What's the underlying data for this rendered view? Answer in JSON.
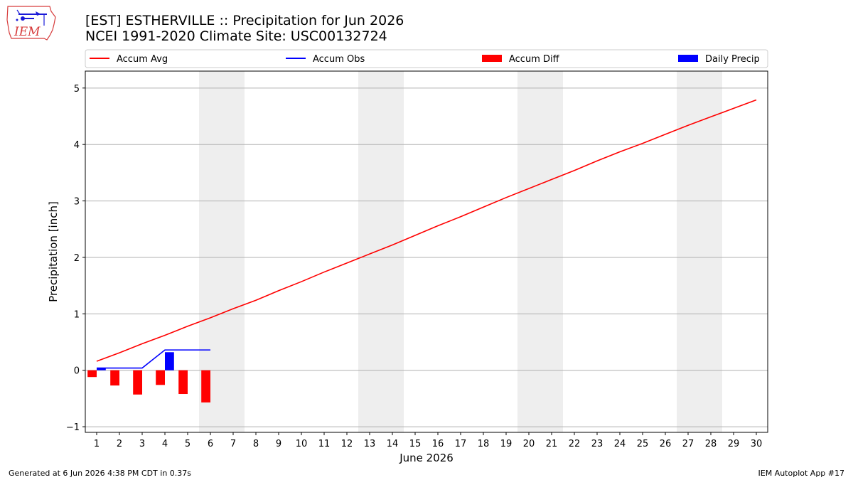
{
  "header": {
    "title_line1": "[EST] ESTHERVILLE :: Precipitation for Jun 2026",
    "title_line2": "NCEI 1991-2020 Climate Site: USC00132724",
    "logo_text": "IEM"
  },
  "footer": {
    "generated": "Generated at 6 Jun 2026 4:38 PM CDT in 0.37s",
    "app": "IEM Autoplot App #17"
  },
  "colors": {
    "accum_avg": "#ff0000",
    "accum_obs": "#0000ff",
    "accum_diff": "#ff0000",
    "daily_precip": "#0000ff",
    "weekend_shade": "#eeeeee",
    "grid": "#b0b0b0"
  },
  "chart_data": {
    "type": "line",
    "xlabel": "June 2026",
    "ylabel": "Precipitation [inch]",
    "xlim": [
      0.5,
      30.5
    ],
    "ylim": [
      -1.1,
      5.3
    ],
    "x_ticks": [
      1,
      2,
      3,
      4,
      5,
      6,
      7,
      8,
      9,
      10,
      11,
      12,
      13,
      14,
      15,
      16,
      17,
      18,
      19,
      20,
      21,
      22,
      23,
      24,
      25,
      26,
      27,
      28,
      29,
      30
    ],
    "y_ticks": [
      -1,
      0,
      1,
      2,
      3,
      4,
      5
    ],
    "grid": "horizontal",
    "legend_position": "top",
    "weekend_shading": [
      [
        6,
        7
      ],
      [
        13,
        14
      ],
      [
        20,
        21
      ],
      [
        27,
        28
      ]
    ],
    "series": [
      {
        "name": "Accum Avg",
        "kind": "line",
        "x": [
          1,
          2,
          3,
          4,
          5,
          6,
          7,
          8,
          9,
          10,
          11,
          12,
          13,
          14,
          15,
          16,
          17,
          18,
          19,
          20,
          21,
          22,
          23,
          24,
          25,
          26,
          27,
          28,
          29,
          30
        ],
        "values": [
          0.16,
          0.31,
          0.47,
          0.62,
          0.78,
          0.93,
          1.09,
          1.24,
          1.41,
          1.57,
          1.74,
          1.9,
          2.06,
          2.22,
          2.39,
          2.56,
          2.72,
          2.89,
          3.06,
          3.22,
          3.38,
          3.54,
          3.71,
          3.87,
          4.02,
          4.18,
          4.34,
          4.49,
          4.64,
          4.79
        ]
      },
      {
        "name": "Accum Obs",
        "kind": "line",
        "x": [
          1,
          2,
          3,
          4,
          5,
          6
        ],
        "values": [
          0.04,
          0.04,
          0.04,
          0.36,
          0.36,
          0.36
        ]
      },
      {
        "name": "Accum Diff",
        "kind": "bar",
        "x": [
          1,
          2,
          3,
          4,
          5,
          6
        ],
        "values": [
          -0.12,
          -0.27,
          -0.43,
          -0.26,
          -0.42,
          -0.57
        ]
      },
      {
        "name": "Daily Precip",
        "kind": "bar",
        "x": [
          1,
          2,
          3,
          4,
          5,
          6
        ],
        "values": [
          0.04,
          0.0,
          0.0,
          0.32,
          0.0,
          0.0
        ]
      }
    ]
  }
}
